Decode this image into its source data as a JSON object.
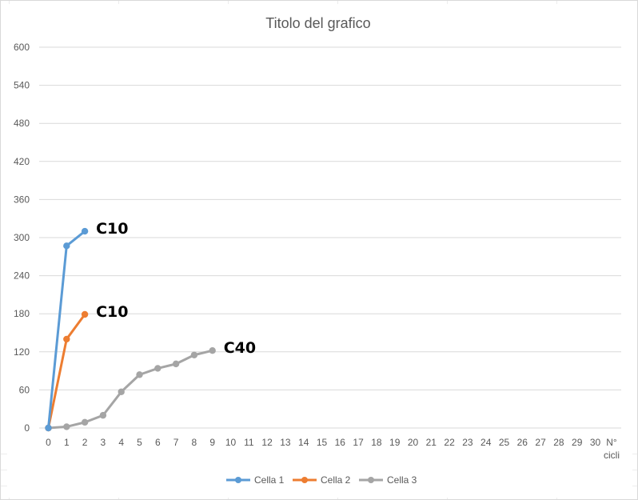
{
  "chart_data": {
    "type": "line",
    "title": "Titolo del grafico",
    "xlabel": "N° cicli",
    "xlabel_lines": [
      "N°",
      "cicli"
    ],
    "ylabel": "",
    "x_categories": [
      "0",
      "1",
      "2",
      "3",
      "4",
      "5",
      "6",
      "7",
      "8",
      "9",
      "10",
      "11",
      "12",
      "13",
      "14",
      "15",
      "16",
      "17",
      "18",
      "19",
      "20",
      "21",
      "22",
      "23",
      "24",
      "25",
      "26",
      "27",
      "28",
      "29",
      "30"
    ],
    "xlim": [
      0,
      31
    ],
    "ylim": [
      0,
      600
    ],
    "yticks": [
      0,
      60,
      120,
      180,
      240,
      300,
      360,
      420,
      480,
      540,
      600
    ],
    "ytick_labels": [
      "0",
      "60",
      "120",
      "180",
      "240",
      "300",
      "360",
      "420",
      "480",
      "540",
      "600"
    ],
    "grid": true,
    "legend_position": "bottom",
    "series": [
      {
        "name": "Cella 1",
        "color": "#5b9bd5",
        "x": [
          0,
          1,
          2
        ],
        "values": [
          0,
          287,
          310
        ]
      },
      {
        "name": "Cella 2",
        "color": "#ed7d31",
        "x": [
          0,
          1,
          2
        ],
        "values": [
          0,
          140,
          179
        ]
      },
      {
        "name": "Cella 3",
        "color": "#a5a5a5",
        "x": [
          0,
          1,
          2,
          3,
          4,
          5,
          6,
          7,
          8,
          9
        ],
        "values": [
          0,
          2,
          9,
          20,
          57,
          84,
          94,
          101,
          115,
          122
        ]
      }
    ],
    "annotations": [
      {
        "text": "C10",
        "series": 0
      },
      {
        "text": "C10",
        "series": 1
      },
      {
        "text": "C40",
        "series": 2
      }
    ]
  }
}
